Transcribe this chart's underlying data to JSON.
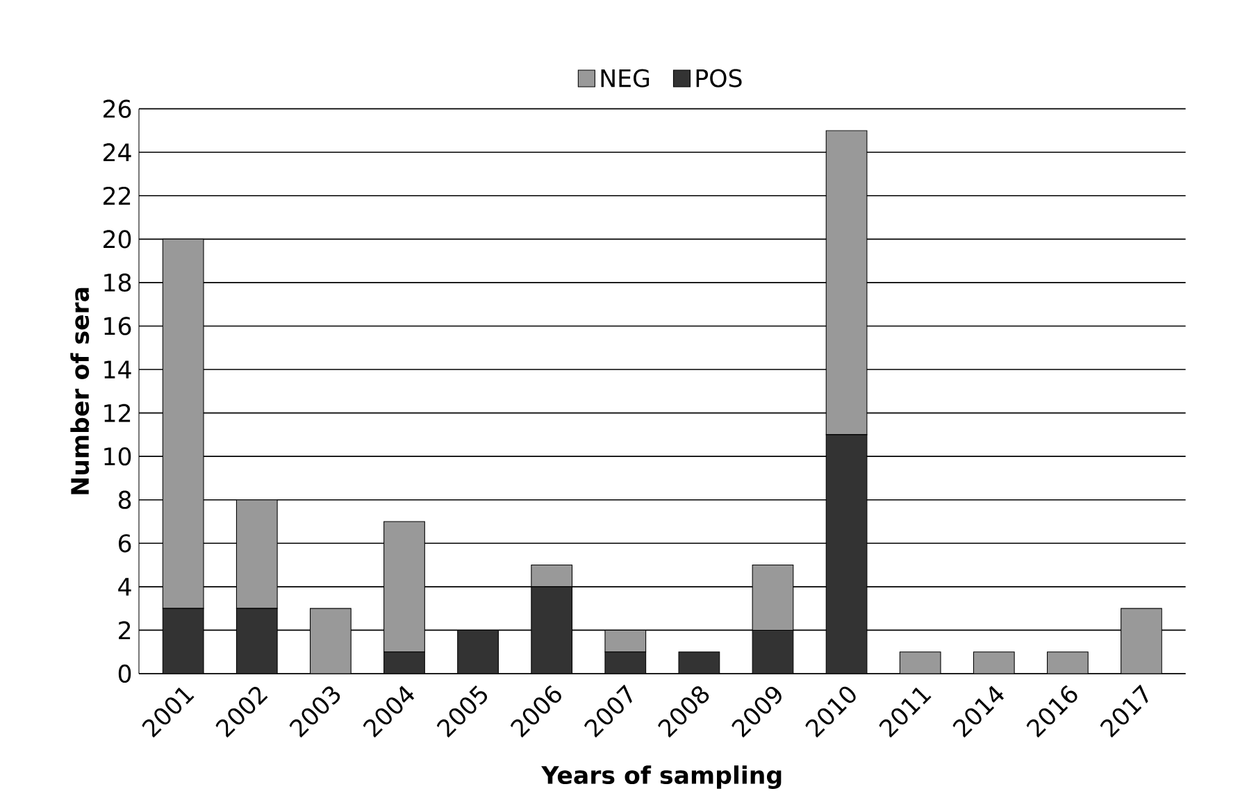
{
  "chart_data": {
    "type": "bar",
    "stacked": true,
    "xlabel": "Years of sampling",
    "ylabel": "Number of sera",
    "categories": [
      "2001",
      "2002",
      "2003",
      "2004",
      "2005",
      "2006",
      "2007",
      "2008",
      "2009",
      "2010",
      "2011",
      "2014",
      "2016",
      "2017"
    ],
    "series": [
      {
        "name": "POS",
        "color": "#333333",
        "values": [
          3,
          3,
          0,
          1,
          2,
          4,
          1,
          1,
          2,
          11,
          0,
          0,
          0,
          0
        ]
      },
      {
        "name": "NEG",
        "color": "#999999",
        "values": [
          17,
          5,
          3,
          6,
          0,
          1,
          1,
          0,
          3,
          14,
          1,
          1,
          1,
          3
        ]
      }
    ],
    "ylim": [
      0,
      26
    ],
    "yticks": [
      0,
      2,
      4,
      6,
      8,
      10,
      12,
      14,
      16,
      18,
      20,
      22,
      24,
      26
    ],
    "grid": "y",
    "legend": "top"
  }
}
